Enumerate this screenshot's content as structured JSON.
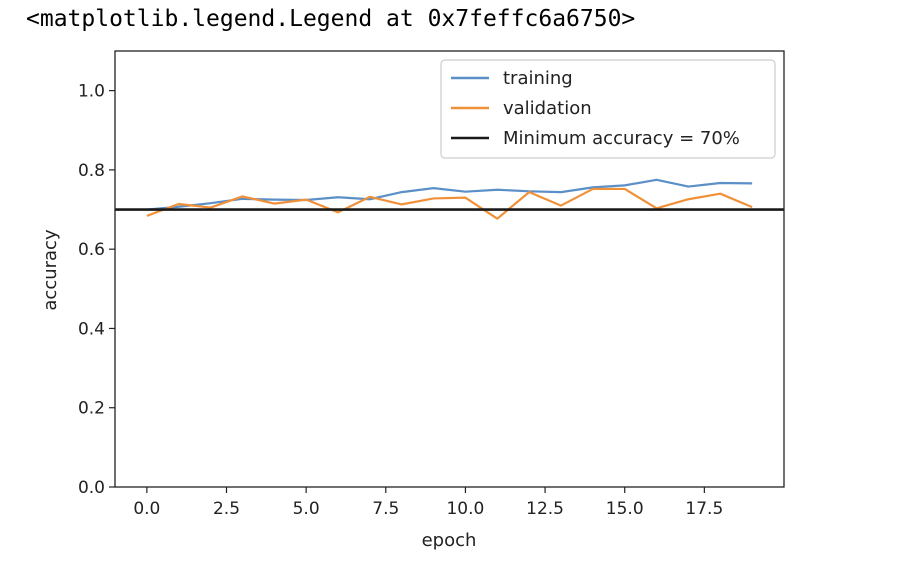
{
  "output_text": "<matplotlib.legend.Legend at 0x7feffc6a6750>",
  "colors": {
    "training": "#5b8fc7",
    "validation": "#f0913a",
    "minimum": "#1a1a1a",
    "axes": "#222222"
  },
  "chart_data": {
    "type": "line",
    "title": "",
    "xlabel": "epoch",
    "ylabel": "accuracy",
    "xlim": [
      -1.0,
      20.0
    ],
    "ylim": [
      0.0,
      1.1
    ],
    "xticks": [
      0.0,
      2.5,
      5.0,
      7.5,
      10.0,
      12.5,
      15.0,
      17.5
    ],
    "xtick_labels": [
      "0.0",
      "2.5",
      "5.0",
      "7.5",
      "10.0",
      "12.5",
      "15.0",
      "17.5"
    ],
    "yticks": [
      0.0,
      0.2,
      0.4,
      0.6,
      0.8,
      1.0
    ],
    "ytick_labels": [
      "0.0",
      "0.2",
      "0.4",
      "0.6",
      "0.8",
      "1.0"
    ],
    "x": [
      0,
      1,
      2,
      3,
      4,
      5,
      6,
      7,
      8,
      9,
      10,
      11,
      12,
      13,
      14,
      15,
      16,
      17,
      18,
      19
    ],
    "series": [
      {
        "name": "training",
        "color": "#5b8fc7",
        "values": [
          0.7,
          0.707,
          0.716,
          0.727,
          0.725,
          0.724,
          0.731,
          0.726,
          0.744,
          0.754,
          0.745,
          0.75,
          0.746,
          0.744,
          0.756,
          0.761,
          0.775,
          0.758,
          0.767,
          0.766
        ]
      },
      {
        "name": "validation",
        "color": "#f0913a",
        "values": [
          0.684,
          0.714,
          0.705,
          0.733,
          0.715,
          0.725,
          0.693,
          0.732,
          0.713,
          0.728,
          0.73,
          0.677,
          0.744,
          0.71,
          0.752,
          0.752,
          0.703,
          0.726,
          0.74,
          0.706
        ]
      }
    ],
    "hline": {
      "name": "Minimum accuracy = 70%",
      "y": 0.7,
      "color": "#1a1a1a"
    },
    "legend": {
      "position": "upper right",
      "entries": [
        "training",
        "validation",
        "Minimum accuracy = 70%"
      ]
    },
    "grid": false
  }
}
